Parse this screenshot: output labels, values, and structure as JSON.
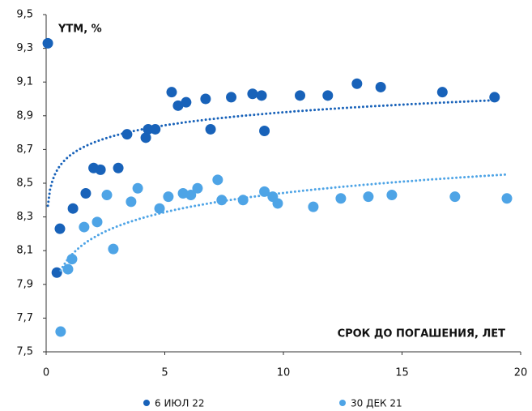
{
  "chart_data": {
    "type": "scatter",
    "y_label": "YTM, %",
    "x_label": "СРОК ДО ПОГАШЕНИЯ, ЛЕТ",
    "xlim": [
      0,
      20
    ],
    "xticks": [
      0,
      5,
      10,
      15,
      20
    ],
    "ylim": [
      7.5,
      9.5
    ],
    "yticks": [
      {
        "value": 7.5,
        "label": "7,5"
      },
      {
        "value": 7.7,
        "label": "7,7"
      },
      {
        "value": 7.9,
        "label": "7,9"
      },
      {
        "value": 8.1,
        "label": "8,1"
      },
      {
        "value": 8.3,
        "label": "8,3"
      },
      {
        "value": 8.5,
        "label": "8,5"
      },
      {
        "value": 8.7,
        "label": "8,7"
      },
      {
        "value": 8.9,
        "label": "8,9"
      },
      {
        "value": 9.1,
        "label": "9,1"
      },
      {
        "value": 9.3,
        "label": "9,3"
      },
      {
        "value": 9.5,
        "label": "9,5"
      }
    ],
    "trendline": "logarithmic",
    "legend": "bottom",
    "series": [
      {
        "name": "6 ИЮЛ 22",
        "color": "#1862b9",
        "x": [
          0.07,
          0.45,
          0.58,
          1.13,
          1.67,
          2.0,
          2.29,
          3.04,
          3.41,
          4.2,
          4.3,
          4.6,
          5.29,
          5.56,
          5.9,
          6.72,
          6.93,
          7.8,
          8.7,
          9.08,
          9.2,
          10.7,
          11.87,
          13.1,
          14.1,
          16.7,
          18.9
        ],
        "values": [
          9.33,
          7.97,
          8.23,
          8.35,
          8.44,
          8.59,
          8.58,
          8.59,
          8.79,
          8.77,
          8.82,
          8.82,
          9.04,
          8.96,
          8.98,
          9.0,
          8.82,
          9.01,
          9.03,
          9.02,
          8.81,
          9.02,
          9.02,
          9.09,
          9.07,
          9.04,
          9.01
        ]
      },
      {
        "name": "30 ДЕК 21",
        "color": "#4ea4e6",
        "x": [
          0.61,
          0.92,
          1.09,
          1.6,
          2.15,
          2.56,
          2.83,
          3.58,
          3.86,
          4.78,
          5.15,
          5.77,
          6.1,
          6.38,
          7.23,
          7.4,
          8.3,
          9.2,
          9.55,
          9.76,
          11.26,
          12.42,
          13.58,
          14.57,
          17.23,
          19.42
        ],
        "values": [
          7.62,
          7.99,
          8.05,
          8.24,
          8.27,
          8.43,
          8.11,
          8.39,
          8.47,
          8.35,
          8.42,
          8.44,
          8.43,
          8.47,
          8.52,
          8.4,
          8.4,
          8.45,
          8.42,
          8.38,
          8.36,
          8.41,
          8.42,
          8.43,
          8.42,
          8.41
        ]
      }
    ]
  }
}
